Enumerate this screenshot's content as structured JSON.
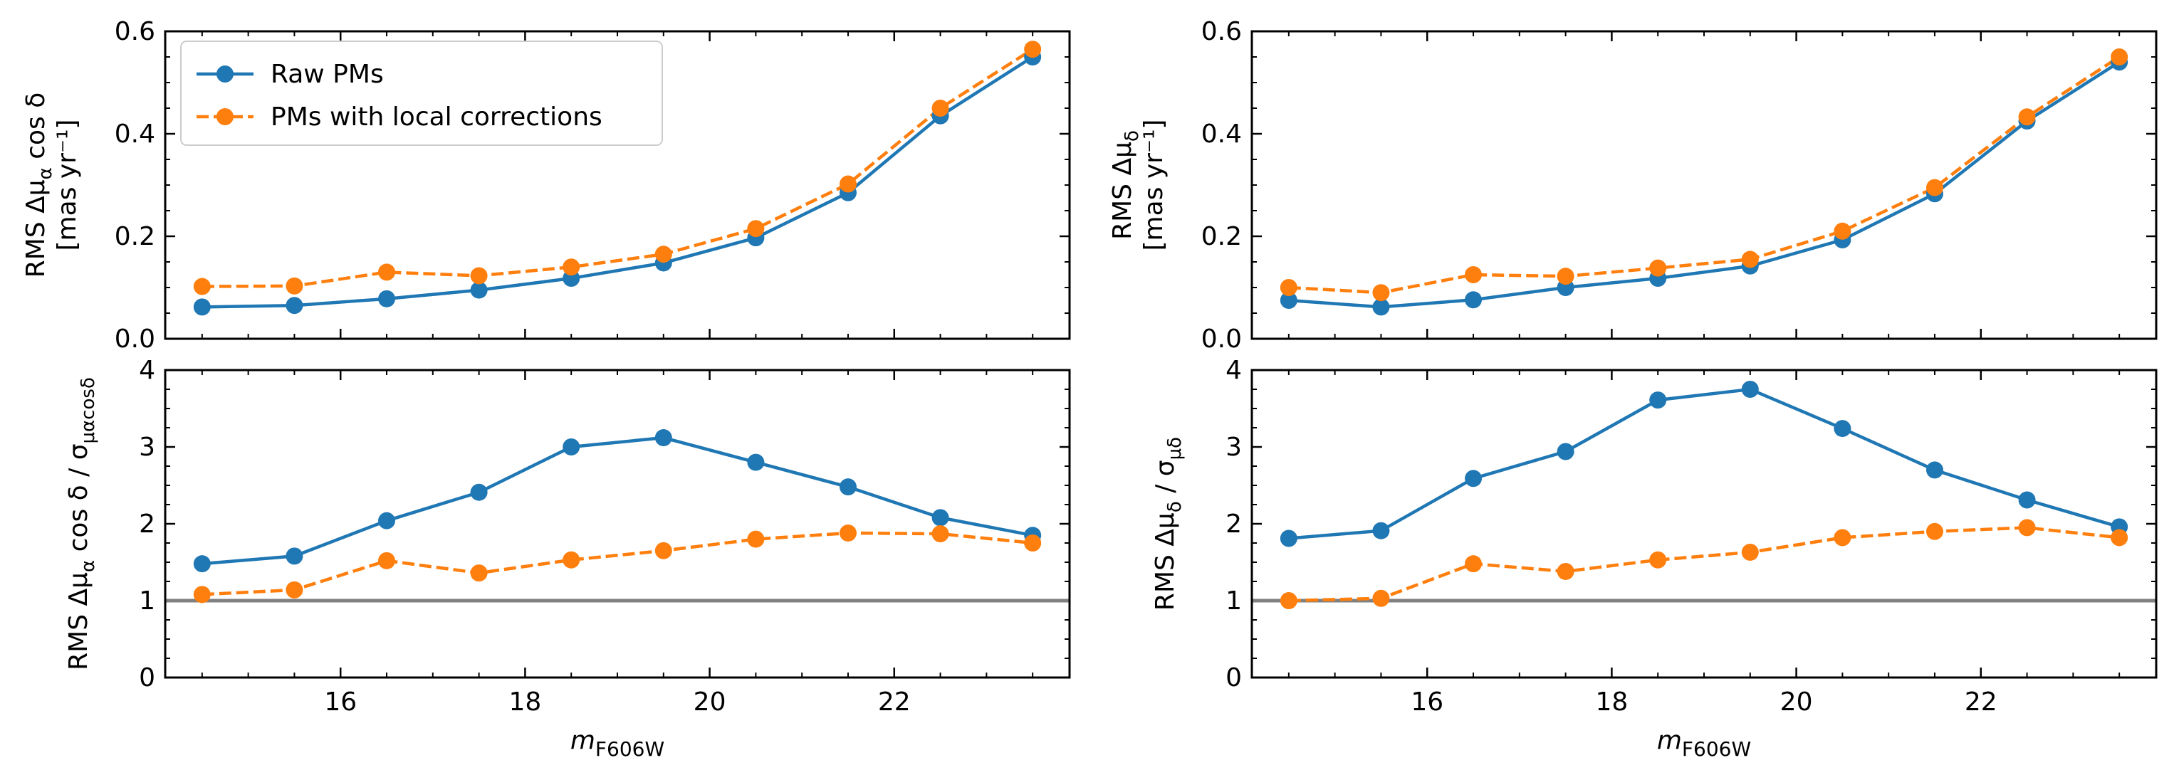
{
  "figure": {
    "legend": {
      "placement": "top-left",
      "entries": [
        "Raw PMs",
        "PMs with local corrections"
      ]
    },
    "colors": {
      "raw": "#1f77b4",
      "corrected": "#ff7f0e",
      "reference_line": "#808080"
    }
  },
  "chart_data": [
    {
      "id": "top-left",
      "type": "line",
      "xlabel": "",
      "ylabel_lines": [
        "RMS Δμ_α cos δ",
        "[mas yr⁻¹]"
      ],
      "ylim": [
        0,
        0.6
      ],
      "yticks": [
        0.0,
        0.2,
        0.4,
        0.6
      ],
      "ytick_labels": [
        "0.0",
        "0.2",
        "0.4",
        "0.6"
      ],
      "xlim": [
        14.1,
        23.9
      ],
      "xticks": [
        16,
        18,
        20,
        22
      ],
      "xtick_labels": [],
      "legend": true,
      "x": [
        14.5,
        15.5,
        16.5,
        17.5,
        18.5,
        19.5,
        20.5,
        21.5,
        22.5,
        23.5
      ],
      "series": [
        {
          "name": "Raw PMs",
          "style": "solid",
          "values": [
            0.062,
            0.065,
            0.078,
            0.095,
            0.118,
            0.148,
            0.197,
            0.285,
            0.435,
            0.55
          ]
        },
        {
          "name": "PMs with local corrections",
          "style": "dashed",
          "values": [
            0.102,
            0.103,
            0.13,
            0.123,
            0.14,
            0.165,
            0.215,
            0.302,
            0.45,
            0.565
          ]
        }
      ]
    },
    {
      "id": "top-right",
      "type": "line",
      "xlabel": "",
      "ylabel_lines": [
        "RMS Δμ_δ",
        "[mas yr⁻¹]"
      ],
      "ylim": [
        0,
        0.6
      ],
      "yticks": [
        0.0,
        0.2,
        0.4,
        0.6
      ],
      "ytick_labels": [
        "0.0",
        "0.2",
        "0.4",
        "0.6"
      ],
      "xlim": [
        14.1,
        23.9
      ],
      "xticks": [
        16,
        18,
        20,
        22
      ],
      "xtick_labels": [],
      "legend": false,
      "x": [
        14.5,
        15.5,
        16.5,
        17.5,
        18.5,
        19.5,
        20.5,
        21.5,
        22.5,
        23.5
      ],
      "series": [
        {
          "name": "Raw PMs",
          "style": "solid",
          "values": [
            0.075,
            0.062,
            0.076,
            0.1,
            0.118,
            0.142,
            0.193,
            0.283,
            0.425,
            0.54
          ]
        },
        {
          "name": "PMs with local corrections",
          "style": "dashed",
          "values": [
            0.1,
            0.09,
            0.125,
            0.122,
            0.138,
            0.155,
            0.21,
            0.295,
            0.433,
            0.55
          ]
        }
      ]
    },
    {
      "id": "bottom-left",
      "type": "line",
      "xlabel": "m_F606W",
      "ylabel_lines": [
        "RMS Δμ_α cos δ / σ_μαcosδ"
      ],
      "ylim": [
        0,
        4
      ],
      "yticks": [
        0,
        1,
        2,
        3,
        4
      ],
      "ytick_labels": [
        "0",
        "1",
        "2",
        "3",
        "4"
      ],
      "xlim": [
        14.1,
        23.9
      ],
      "xticks": [
        16,
        18,
        20,
        22
      ],
      "xtick_labels": [
        "16",
        "18",
        "20",
        "22"
      ],
      "reference_line": 1,
      "legend": false,
      "x": [
        14.5,
        15.5,
        16.5,
        17.5,
        18.5,
        19.5,
        20.5,
        21.5,
        22.5,
        23.5
      ],
      "series": [
        {
          "name": "Raw PMs",
          "style": "solid",
          "values": [
            1.48,
            1.58,
            2.04,
            2.41,
            3.0,
            3.12,
            2.8,
            2.48,
            2.08,
            1.85
          ]
        },
        {
          "name": "PMs with local corrections",
          "style": "dashed",
          "values": [
            1.08,
            1.14,
            1.52,
            1.36,
            1.53,
            1.65,
            1.8,
            1.88,
            1.87,
            1.75
          ]
        }
      ]
    },
    {
      "id": "bottom-right",
      "type": "line",
      "xlabel": "m_F606W",
      "ylabel_lines": [
        "RMS Δμ_δ / σ_μδ"
      ],
      "ylim": [
        0,
        4
      ],
      "yticks": [
        0,
        1,
        2,
        3,
        4
      ],
      "ytick_labels": [
        "0",
        "1",
        "2",
        "3",
        "4"
      ],
      "xlim": [
        14.1,
        23.9
      ],
      "xticks": [
        16,
        18,
        20,
        22
      ],
      "xtick_labels": [
        "16",
        "18",
        "20",
        "22"
      ],
      "reference_line": 1,
      "legend": false,
      "x": [
        14.5,
        15.5,
        16.5,
        17.5,
        18.5,
        19.5,
        20.5,
        21.5,
        22.5,
        23.5
      ],
      "series": [
        {
          "name": "Raw PMs",
          "style": "solid",
          "values": [
            1.81,
            1.91,
            2.59,
            2.94,
            3.61,
            3.75,
            3.24,
            2.7,
            2.31,
            1.96
          ]
        },
        {
          "name": "PMs with local corrections",
          "style": "dashed",
          "values": [
            1.0,
            1.03,
            1.48,
            1.38,
            1.53,
            1.63,
            1.82,
            1.9,
            1.95,
            1.82
          ]
        }
      ]
    }
  ]
}
